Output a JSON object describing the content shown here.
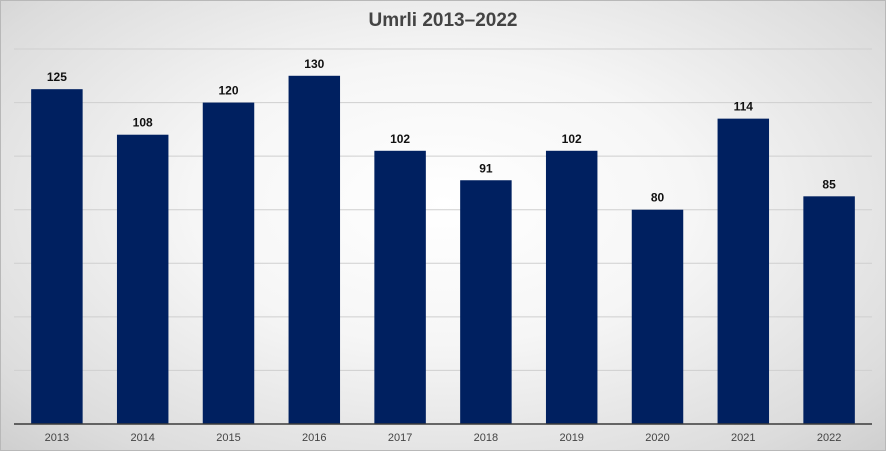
{
  "chart_data": {
    "type": "bar",
    "title": "Umrli 2013–2022",
    "categories": [
      "2013",
      "2014",
      "2015",
      "2016",
      "2017",
      "2018",
      "2019",
      "2020",
      "2021",
      "2022"
    ],
    "values": [
      125,
      108,
      120,
      130,
      102,
      91,
      102,
      80,
      114,
      85
    ],
    "ylim": [
      0,
      140
    ],
    "grid": true,
    "legend": "none",
    "xlabel": "",
    "ylabel": "",
    "colors": {
      "bar": "#002060"
    }
  }
}
